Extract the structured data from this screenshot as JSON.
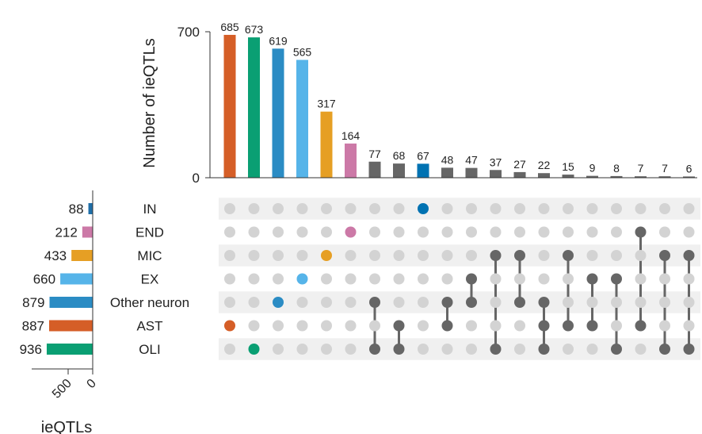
{
  "chart_data": {
    "type": "upset",
    "intersection_axis": {
      "label": "Number of ieQTLs",
      "ylim": [
        0,
        700
      ],
      "ticks": [
        0,
        700
      ]
    },
    "set_size_axis": {
      "label": "ieQTLs",
      "xlim": [
        0,
        1000
      ],
      "ticks": [
        0,
        500
      ],
      "direction": "right-to-left"
    },
    "sets": [
      {
        "name": "IN",
        "size": 88,
        "color": "#1f6fa8"
      },
      {
        "name": "END",
        "size": 212,
        "color": "#cc79a7"
      },
      {
        "name": "MIC",
        "size": 433,
        "color": "#e69f24"
      },
      {
        "name": "EX",
        "size": 660,
        "color": "#56b4e9"
      },
      {
        "name": "Other neuron",
        "size": 879,
        "color": "#2b8cc4"
      },
      {
        "name": "AST",
        "size": 887,
        "color": "#d55e27"
      },
      {
        "name": "OLI",
        "size": 936,
        "color": "#0a9f73"
      }
    ],
    "intersections": [
      {
        "value": 685,
        "members": [
          "AST"
        ],
        "color": "#d55e27"
      },
      {
        "value": 673,
        "members": [
          "OLI"
        ],
        "color": "#0a9f73"
      },
      {
        "value": 619,
        "members": [
          "Other neuron"
        ],
        "color": "#2b8cc4"
      },
      {
        "value": 565,
        "members": [
          "EX"
        ],
        "color": "#56b4e9"
      },
      {
        "value": 317,
        "members": [
          "MIC"
        ],
        "color": "#e69f24"
      },
      {
        "value": 164,
        "members": [
          "END"
        ],
        "color": "#cc79a7"
      },
      {
        "value": 77,
        "members": [
          "Other neuron",
          "OLI"
        ],
        "color": "#666666"
      },
      {
        "value": 68,
        "members": [
          "AST",
          "OLI"
        ],
        "color": "#666666"
      },
      {
        "value": 67,
        "members": [
          "IN"
        ],
        "color": "#0072b2"
      },
      {
        "value": 48,
        "members": [
          "Other neuron",
          "AST"
        ],
        "color": "#666666"
      },
      {
        "value": 47,
        "members": [
          "EX",
          "Other neuron"
        ],
        "color": "#666666"
      },
      {
        "value": 37,
        "members": [
          "MIC",
          "OLI"
        ],
        "color": "#666666"
      },
      {
        "value": 27,
        "members": [
          "MIC",
          "Other neuron"
        ],
        "color": "#666666"
      },
      {
        "value": 22,
        "members": [
          "Other neuron",
          "AST",
          "OLI"
        ],
        "color": "#666666"
      },
      {
        "value": 15,
        "members": [
          "MIC",
          "AST"
        ],
        "color": "#666666"
      },
      {
        "value": 9,
        "members": [
          "EX",
          "AST"
        ],
        "color": "#666666"
      },
      {
        "value": 8,
        "members": [
          "EX",
          "OLI"
        ],
        "color": "#666666"
      },
      {
        "value": 7,
        "members": [
          "END",
          "AST"
        ],
        "color": "#666666"
      },
      {
        "value": 7,
        "members": [
          "MIC",
          "OLI"
        ],
        "color": "#666666"
      },
      {
        "value": 6,
        "members": [
          "MIC",
          "OLI"
        ],
        "color": "#666666"
      }
    ],
    "inactive_dot_color": "#d3d3d3",
    "active_connector_color": "#666666",
    "stripe_color": "#f0f0f0"
  }
}
